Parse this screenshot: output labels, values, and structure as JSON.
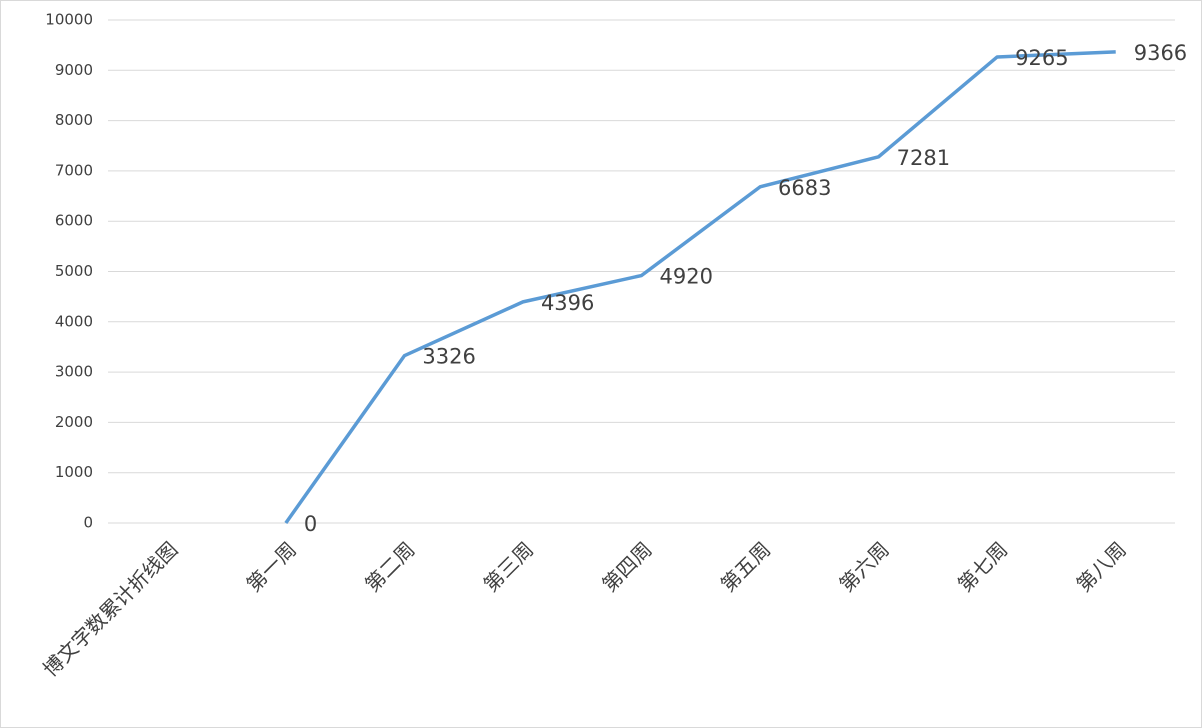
{
  "chart_data": {
    "type": "line",
    "categories": [
      "博文字数累计折线图",
      "第一周",
      "第二周",
      "第三周",
      "第四周",
      "第五周",
      "第六周",
      "第七周",
      "第八周"
    ],
    "values": [
      null,
      0,
      3326,
      4396,
      4920,
      6683,
      7281,
      9265,
      9366
    ],
    "color": "#5b9bd5",
    "ylim": [
      0,
      10000
    ],
    "yticks": [
      0,
      1000,
      2000,
      3000,
      4000,
      5000,
      6000,
      7000,
      8000,
      9000,
      10000
    ],
    "grid": true
  }
}
